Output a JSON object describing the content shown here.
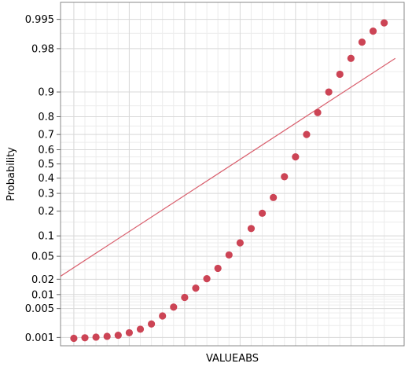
{
  "chart_data": {
    "type": "scatter",
    "title": "",
    "xlabel": "VALUEABS",
    "ylabel": "Probability",
    "y_scale": "probability",
    "ylim": [
      0.0006,
      0.998
    ],
    "y_ticks": [
      0.001,
      0.005,
      0.01,
      0.02,
      0.05,
      0.1,
      0.2,
      0.3,
      0.4,
      0.5,
      0.6,
      0.7,
      0.8,
      0.9,
      0.98,
      0.995
    ],
    "y_tick_labels": [
      "0.001",
      "0.005",
      "0.01",
      "0.02",
      "0.05",
      "0.1",
      "0.2",
      "0.3",
      "0.4",
      "0.5",
      "0.6",
      "0.7",
      "0.8",
      "0.9",
      "0.98",
      "0.995"
    ],
    "x_tick_labels": [],
    "grid": true,
    "point_color": "#CC4455",
    "fit_line_color": "#D9606E",
    "series": [
      {
        "points": [
          {
            "x": 0,
            "y": 0.00095
          },
          {
            "x": 1,
            "y": 0.00098
          },
          {
            "x": 2,
            "y": 0.00102
          },
          {
            "x": 3,
            "y": 0.00107
          },
          {
            "x": 4,
            "y": 0.00114
          },
          {
            "x": 5,
            "y": 0.00132
          },
          {
            "x": 6,
            "y": 0.00162
          },
          {
            "x": 7,
            "y": 0.00218
          },
          {
            "x": 8,
            "y": 0.0034
          },
          {
            "x": 9,
            "y": 0.0054
          },
          {
            "x": 10,
            "y": 0.0087
          },
          {
            "x": 11,
            "y": 0.0135
          },
          {
            "x": 12,
            "y": 0.0205
          },
          {
            "x": 13,
            "y": 0.0315
          },
          {
            "x": 14,
            "y": 0.0525
          },
          {
            "x": 15,
            "y": 0.08
          },
          {
            "x": 16,
            "y": 0.125
          },
          {
            "x": 17,
            "y": 0.19
          },
          {
            "x": 18,
            "y": 0.275
          },
          {
            "x": 19,
            "y": 0.41
          },
          {
            "x": 20,
            "y": 0.55
          },
          {
            "x": 21,
            "y": 0.7
          },
          {
            "x": 22,
            "y": 0.82
          },
          {
            "x": 23,
            "y": 0.9
          },
          {
            "x": 24,
            "y": 0.945
          },
          {
            "x": 25,
            "y": 0.97
          },
          {
            "x": 26,
            "y": 0.985
          },
          {
            "x": 27,
            "y": 0.991
          },
          {
            "x": 28,
            "y": 0.994
          }
        ]
      }
    ],
    "fit_line": [
      {
        "x": -1.7,
        "y": 0.0195
      },
      {
        "x": 29,
        "y": 0.97
      }
    ],
    "xlim": [
      -1.2,
      29.8
    ]
  }
}
